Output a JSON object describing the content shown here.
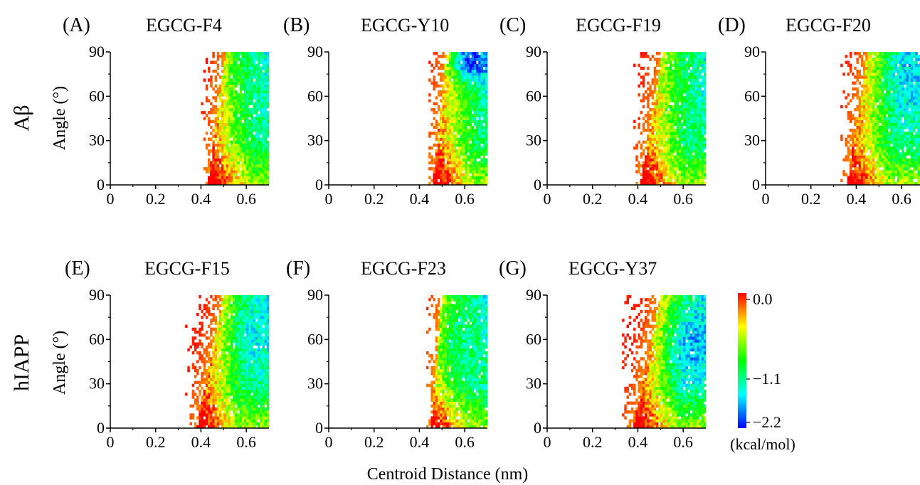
{
  "figure": {
    "xlabel": "Centroid Distance (nm)",
    "ylabel": "Angle (°)",
    "row_labels": [
      "Aβ",
      "hIAPP"
    ]
  },
  "colorbar": {
    "tick_labels": [
      "0.0",
      "−1.1",
      "−2.2"
    ],
    "unit_label": "(kcal/mol)",
    "range": [
      -2.2,
      0.0
    ],
    "colormap": "jet",
    "colors": [
      "#ff0000",
      "#ffff00",
      "#00ff00",
      "#00ffff",
      "#0000ff"
    ]
  },
  "chart_data": [
    {
      "type": "heatmap",
      "panel": "(A)",
      "title": "EGCG-F4",
      "row": "Aβ",
      "xlim": [
        0,
        0.7
      ],
      "ylim": [
        0,
        90
      ],
      "xticks": [
        "0",
        "0.2",
        "0.4",
        "0.6"
      ],
      "yticks": [
        "0",
        "30",
        "60",
        "90"
      ],
      "x_edge_top": 0.51,
      "x_edge_bottom": 0.43,
      "x_min_scatter": 0.4,
      "deep_min_energy": -1.4,
      "deep_min_center": [
        0.68,
        80
      ],
      "deep_min_size": [
        0.14,
        40
      ]
    },
    {
      "type": "heatmap",
      "panel": "(B)",
      "title": "EGCG-Y10",
      "row": "Aβ",
      "xlim": [
        0,
        0.7
      ],
      "ylim": [
        0,
        90
      ],
      "xticks": [
        "0",
        "0.2",
        "0.4",
        "0.6"
      ],
      "yticks": [
        "0",
        "30",
        "60",
        "90"
      ],
      "x_edge_top": 0.52,
      "x_edge_bottom": 0.46,
      "x_min_scatter": 0.43,
      "deep_min_energy": -2.2,
      "deep_min_center": [
        0.63,
        84
      ],
      "deep_min_size": [
        0.08,
        12
      ]
    },
    {
      "type": "heatmap",
      "panel": "(C)",
      "title": "EGCG-F19",
      "row": "Aβ",
      "xlim": [
        0,
        0.7
      ],
      "ylim": [
        0,
        90
      ],
      "xticks": [
        "0",
        "0.2",
        "0.4",
        "0.6"
      ],
      "yticks": [
        "0",
        "30",
        "60",
        "90"
      ],
      "x_edge_top": 0.51,
      "x_edge_bottom": 0.41,
      "x_min_scatter": 0.38,
      "deep_min_energy": -1.3,
      "deep_min_center": [
        0.66,
        75
      ],
      "deep_min_size": [
        0.12,
        40
      ]
    },
    {
      "type": "heatmap",
      "panel": "(D)",
      "title": "EGCG-F20",
      "row": "Aβ",
      "xlim": [
        0,
        0.7
      ],
      "ylim": [
        0,
        90
      ],
      "xticks": [
        "0",
        "0.2",
        "0.4",
        "0.6"
      ],
      "yticks": [
        "0",
        "30",
        "60",
        "90"
      ],
      "x_edge_top": 0.45,
      "x_edge_bottom": 0.36,
      "x_min_scatter": 0.33,
      "deep_min_energy": -1.7,
      "deep_min_center": [
        0.64,
        72
      ],
      "deep_min_size": [
        0.1,
        30
      ]
    },
    {
      "type": "heatmap",
      "panel": "(E)",
      "title": "EGCG-F15",
      "row": "hIAPP",
      "xlim": [
        0,
        0.7
      ],
      "ylim": [
        0,
        90
      ],
      "xticks": [
        "0",
        "0.2",
        "0.4",
        "0.6"
      ],
      "yticks": [
        "0",
        "30",
        "60",
        "90"
      ],
      "x_edge_top": 0.5,
      "x_edge_bottom": 0.38,
      "x_min_scatter": 0.33,
      "deep_min_energy": -1.6,
      "deep_min_center": [
        0.64,
        65
      ],
      "deep_min_size": [
        0.1,
        30
      ]
    },
    {
      "type": "heatmap",
      "panel": "(F)",
      "title": "EGCG-F23",
      "row": "hIAPP",
      "xlim": [
        0,
        0.7
      ],
      "ylim": [
        0,
        90
      ],
      "xticks": [
        "0",
        "0.2",
        "0.4",
        "0.6"
      ],
      "yticks": [
        "0",
        "30",
        "60",
        "90"
      ],
      "x_edge_top": 0.5,
      "x_edge_bottom": 0.45,
      "x_min_scatter": 0.43,
      "deep_min_energy": -1.4,
      "deep_min_center": [
        0.6,
        55
      ],
      "deep_min_size": [
        0.12,
        40
      ]
    },
    {
      "type": "heatmap",
      "panel": "(G)",
      "title": "EGCG-Y37",
      "row": "hIAPP",
      "xlim": [
        0,
        0.7
      ],
      "ylim": [
        0,
        90
      ],
      "xticks": [
        "0",
        "0.2",
        "0.4",
        "0.6"
      ],
      "yticks": [
        "0",
        "30",
        "60",
        "90"
      ],
      "x_edge_top": 0.5,
      "x_edge_bottom": 0.38,
      "x_min_scatter": 0.33,
      "deep_min_energy": -1.8,
      "deep_min_center": [
        0.64,
        55
      ],
      "deep_min_size": [
        0.1,
        30
      ]
    }
  ]
}
